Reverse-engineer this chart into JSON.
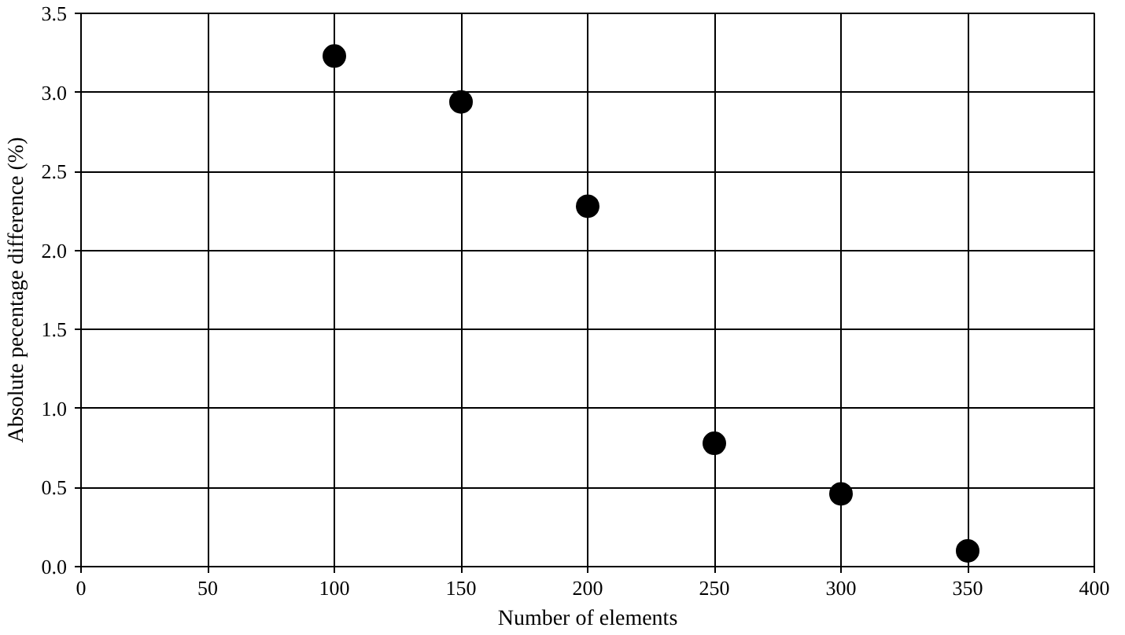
{
  "chart_data": {
    "type": "scatter",
    "xlabel": "Number of elements",
    "ylabel": "Absolute pecentage difference (%)",
    "x": [
      100,
      150,
      200,
      250,
      300,
      350
    ],
    "series": [
      {
        "color": "#000000",
        "values": [
          3.23,
          2.94,
          2.28,
          0.78,
          0.46,
          0.1
        ]
      }
    ],
    "xlim": [
      0,
      400
    ],
    "xticks": [
      0,
      50,
      100,
      150,
      200,
      250,
      300,
      350,
      400
    ],
    "ylim": [
      0,
      3.5
    ],
    "yticks": [
      {
        "value": 0,
        "label": "0.0"
      },
      {
        "value": 0.5,
        "label": "0.5"
      },
      {
        "value": 1,
        "label": "1.0"
      },
      {
        "value": 1.5,
        "label": "1.5"
      },
      {
        "value": 2,
        "label": "2.0"
      },
      {
        "value": 2.5,
        "label": "2.5"
      },
      {
        "value": 3,
        "label": "3.0"
      },
      {
        "value": 3.5,
        "label": "3.5"
      }
    ],
    "grid": true,
    "marker": "circle"
  }
}
